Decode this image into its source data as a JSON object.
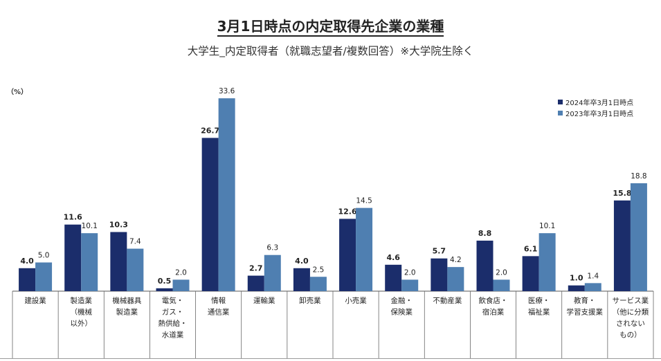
{
  "title": "3月1日時点の内定取得先企業の業種",
  "subtitle": "大学生_内定取得者（就職志望者/複数回答）※大学院生除く",
  "unit": "（%）",
  "colors": {
    "series_2024": "#1b2d6b",
    "series_2023": "#4f7fb1",
    "axis": "#555555"
  },
  "chart_data": {
    "type": "bar",
    "ylim": [
      0,
      36
    ],
    "legend_position": "top-right",
    "categories": [
      [
        "建設業"
      ],
      [
        "製造業",
        "（機械",
        "以外）"
      ],
      [
        "機械器具",
        "製造業"
      ],
      [
        "電気・",
        "ガス・",
        "熱供給・",
        "水道業"
      ],
      [
        "情報",
        "通信業"
      ],
      [
        "運輸業"
      ],
      [
        "卸売業"
      ],
      [
        "小売業"
      ],
      [
        "金融・",
        "保険業"
      ],
      [
        "不動産業"
      ],
      [
        "飲食店・",
        "宿泊業"
      ],
      [
        "医療・",
        "福祉業"
      ],
      [
        "教育・",
        "学習支援業"
      ],
      [
        "サービス業",
        "（他に分類",
        "されない",
        "もの）"
      ]
    ],
    "series": [
      {
        "name": "2024年卒3月1日時点",
        "values": [
          4.0,
          11.6,
          10.3,
          0.5,
          26.7,
          2.7,
          4.0,
          12.6,
          4.6,
          5.7,
          8.8,
          6.1,
          1.0,
          15.8
        ]
      },
      {
        "name": "2023年卒3月1日時点",
        "values": [
          5.0,
          10.1,
          7.4,
          2.0,
          33.6,
          6.3,
          2.5,
          14.5,
          2.0,
          4.2,
          2.0,
          10.1,
          1.4,
          18.8
        ]
      }
    ]
  }
}
